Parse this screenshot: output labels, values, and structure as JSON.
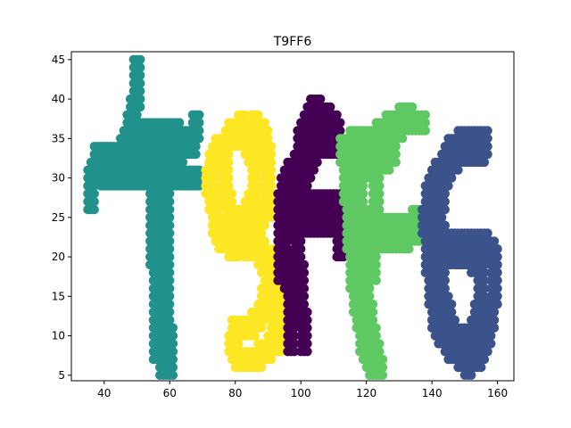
{
  "chart_data": {
    "type": "scatter",
    "title": "T9FF6",
    "xlabel": "",
    "ylabel": "",
    "xlim": [
      30,
      165
    ],
    "ylim": [
      4.3,
      46
    ],
    "xticks": [
      "40",
      "60",
      "80",
      "100",
      "120",
      "140",
      "160"
    ],
    "yticks": [
      "5",
      "10",
      "15",
      "20",
      "25",
      "30",
      "35",
      "40",
      "45"
    ],
    "grid": false,
    "legend": "none",
    "series": [
      {
        "color": "#21918c",
        "strokes": [
          [
            [
              50,
              44
            ],
            [
              50,
              40
            ],
            [
              48,
              37
            ],
            [
              47,
              34
            ],
            [
              45,
              33
            ],
            [
              42,
              33
            ],
            [
              38,
              32
            ],
            [
              36,
              30
            ],
            [
              36,
              27
            ]
          ],
          [
            [
              38,
              33
            ],
            [
              42,
              33
            ],
            [
              50,
              33
            ],
            [
              60,
              33
            ],
            [
              67,
              34
            ],
            [
              68,
              37
            ]
          ],
          [
            [
              40,
              30
            ],
            [
              50,
              30
            ],
            [
              60,
              30
            ],
            [
              68,
              30
            ]
          ],
          [
            [
              44,
              31
            ],
            [
              52,
              36
            ],
            [
              62,
              36
            ],
            [
              66,
              34
            ]
          ],
          [
            [
              57,
              36
            ],
            [
              57,
              24
            ],
            [
              57,
              14
            ],
            [
              58,
              6
            ]
          ],
          [
            [
              60,
              34
            ],
            [
              59,
              24
            ],
            [
              59,
              14
            ],
            [
              60,
              6
            ]
          ],
          [
            [
              55,
              31
            ],
            [
              55,
              24
            ],
            [
              56,
              14
            ],
            [
              56,
              8
            ]
          ]
        ],
        "width": 3
      },
      {
        "color": "#fde725",
        "strokes": [
          [
            [
              82,
              37
            ],
            [
              78,
              35
            ],
            [
              74,
              33
            ],
            [
              72,
              30
            ],
            [
              73,
              27
            ],
            [
              75,
              23
            ],
            [
              79,
              21
            ],
            [
              84,
              22
            ],
            [
              88,
              25
            ]
          ],
          [
            [
              86,
              37
            ],
            [
              89,
              35
            ],
            [
              90,
              30
            ],
            [
              90,
              26
            ]
          ],
          [
            [
              77,
              33
            ],
            [
              77,
              28
            ],
            [
              79,
              25
            ],
            [
              83,
              25
            ],
            [
              86,
              28
            ],
            [
              86,
              32
            ],
            [
              83,
              35
            ],
            [
              79,
              35
            ]
          ],
          [
            [
              84,
              21
            ],
            [
              87,
              21
            ],
            [
              91,
              17
            ],
            [
              93,
              12
            ],
            [
              91,
              9
            ],
            [
              87,
              7
            ],
            [
              81,
              7
            ],
            [
              79,
              9
            ]
          ],
          [
            [
              92,
              20
            ],
            [
              94,
              15
            ],
            [
              94,
              10
            ],
            [
              90,
              8
            ]
          ],
          [
            [
              85,
              11
            ],
            [
              88,
              13
            ],
            [
              90,
              16
            ],
            [
              90,
              19
            ],
            [
              88,
              21
            ]
          ],
          [
            [
              80,
              11
            ],
            [
              84,
              11
            ]
          ]
        ],
        "width": 3
      },
      {
        "color": "#440154",
        "strokes": [
          [
            [
              97,
              9
            ],
            [
              97,
              16
            ],
            [
              95,
              20
            ],
            [
              94,
              26
            ],
            [
              95,
              29
            ],
            [
              99,
              32
            ],
            [
              101,
              36
            ],
            [
              104,
              39
            ],
            [
              110,
              37
            ],
            [
              112,
              34
            ]
          ],
          [
            [
              101,
              9
            ],
            [
              100,
              16
            ],
            [
              99,
              22
            ],
            [
              99,
              28
            ],
            [
              102,
              31
            ],
            [
              104,
              35
            ]
          ],
          [
            [
              97,
              24
            ],
            [
              104,
              24
            ],
            [
              108,
              24
            ],
            [
              112,
              24
            ],
            [
              112,
              21
            ]
          ],
          [
            [
              97,
              27
            ],
            [
              104,
              27
            ],
            [
              110,
              27
            ],
            [
              112,
              26
            ]
          ],
          [
            [
              104,
              33
            ],
            [
              107,
              35
            ],
            [
              110,
              34
            ]
          ],
          [
            [
              94,
              18
            ],
            [
              94,
              24
            ],
            [
              96,
              29
            ]
          ]
        ],
        "width": 3
      },
      {
        "color": "#5ec962",
        "strokes": [
          [
            [
              113,
              34
            ],
            [
              114,
              30
            ],
            [
              115,
              24
            ],
            [
              116,
              18
            ],
            [
              118,
              12
            ],
            [
              120,
              8
            ],
            [
              122,
              6
            ]
          ],
          [
            [
              117,
              33
            ],
            [
              118,
              27
            ],
            [
              119,
              20
            ],
            [
              120,
              14
            ],
            [
              122,
              9
            ],
            [
              124,
              6
            ]
          ],
          [
            [
              113,
              33
            ],
            [
              118,
              33
            ],
            [
              124,
              34
            ],
            [
              128,
              36
            ],
            [
              134,
              37
            ],
            [
              137,
              37
            ]
          ],
          [
            [
              116,
              35
            ],
            [
              122,
              35
            ],
            [
              128,
              37
            ],
            [
              133,
              38
            ]
          ],
          [
            [
              116,
              30
            ],
            [
              122,
              31
            ],
            [
              128,
              33
            ]
          ],
          [
            [
              119,
              22
            ],
            [
              124,
              22
            ],
            [
              130,
              22
            ],
            [
              136,
              23
            ]
          ],
          [
            [
              120,
              25
            ],
            [
              126,
              24
            ],
            [
              133,
              24
            ],
            [
              136,
              25
            ]
          ],
          [
            [
              123,
              22
            ],
            [
              123,
              30
            ],
            [
              122,
              18
            ]
          ]
        ],
        "width": 3
      },
      {
        "color": "#3b528b",
        "strokes": [
          [
            [
              156,
              35
            ],
            [
              150,
              34
            ],
            [
              144,
              32
            ],
            [
              140,
              29
            ],
            [
              138,
              25
            ],
            [
              139,
              20
            ],
            [
              140,
              15
            ],
            [
              142,
              11
            ],
            [
              146,
              8
            ],
            [
              151,
              6
            ],
            [
              155,
              8
            ],
            [
              158,
              12
            ],
            [
              159,
              16
            ],
            [
              159,
              20
            ],
            [
              156,
              22
            ],
            [
              151,
              22
            ],
            [
              146,
              22
            ],
            [
              142,
              23
            ],
            [
              140,
              26
            ]
          ],
          [
            [
              155,
              33
            ],
            [
              148,
              33
            ],
            [
              144,
              30
            ],
            [
              142,
              26
            ],
            [
              142,
              20
            ],
            [
              143,
              15
            ],
            [
              146,
              11
            ],
            [
              150,
              9
            ],
            [
              153,
              11
            ],
            [
              155,
              14
            ],
            [
              155,
              18
            ],
            [
              152,
              20
            ],
            [
              147,
              20
            ],
            [
              143,
              20
            ]
          ],
          [
            [
              145,
              33
            ],
            [
              150,
              35
            ],
            [
              156,
              34
            ]
          ]
        ],
        "width": 3
      }
    ]
  }
}
